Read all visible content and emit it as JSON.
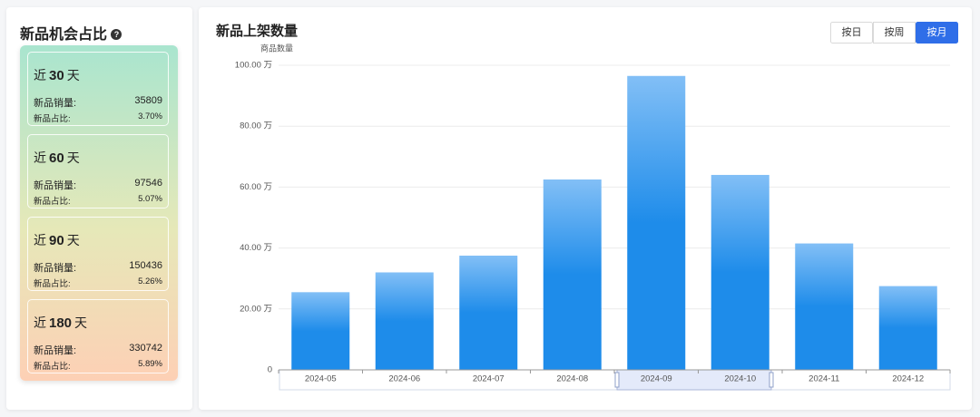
{
  "panel": {
    "title": "新品机会占比",
    "cards": [
      {
        "prefix": "近",
        "days": 30,
        "suffix": "天",
        "sales_label": "新品销量:",
        "sales": 35809,
        "share_label": "新品占比:",
        "share": "3.70%"
      },
      {
        "prefix": "近",
        "days": 60,
        "suffix": "天",
        "sales_label": "新品销量:",
        "sales": 97546,
        "share_label": "新品占比:",
        "share": "5.07%"
      },
      {
        "prefix": "近",
        "days": 90,
        "suffix": "天",
        "sales_label": "新品销量:",
        "sales": 150436,
        "share_label": "新品占比:",
        "share": "5.26%"
      },
      {
        "prefix": "近",
        "days": 180,
        "suffix": "天",
        "sales_label": "新品销量:",
        "sales": 330742,
        "share_label": "新品占比:",
        "share": "5.89%"
      }
    ]
  },
  "chart_data": {
    "type": "bar",
    "title": "新品上架数量",
    "buttons": [
      "按日",
      "按周",
      "按月"
    ],
    "active_button": 2,
    "y_axis_label": "商品数量",
    "categories": [
      "2024-05",
      "2024-06",
      "2024-07",
      "2024-08",
      "2024-09",
      "2024-10",
      "2024-11",
      "2024-12"
    ],
    "values": [
      255000,
      320000,
      375000,
      625000,
      965000,
      640000,
      415000,
      275000
    ],
    "color": "#1e8cea",
    "ylim": [
      0,
      1000000
    ],
    "yticks": [
      0,
      {
        "value": 200000,
        "label": "20.00 万"
      },
      {
        "value": 400000,
        "label": "40.00 万"
      },
      {
        "value": 600000,
        "label": "60.00 万"
      },
      {
        "value": 800000,
        "label": "80.00 万"
      },
      {
        "value": 1000000,
        "label": "100.00 万"
      }
    ],
    "grid": true
  }
}
